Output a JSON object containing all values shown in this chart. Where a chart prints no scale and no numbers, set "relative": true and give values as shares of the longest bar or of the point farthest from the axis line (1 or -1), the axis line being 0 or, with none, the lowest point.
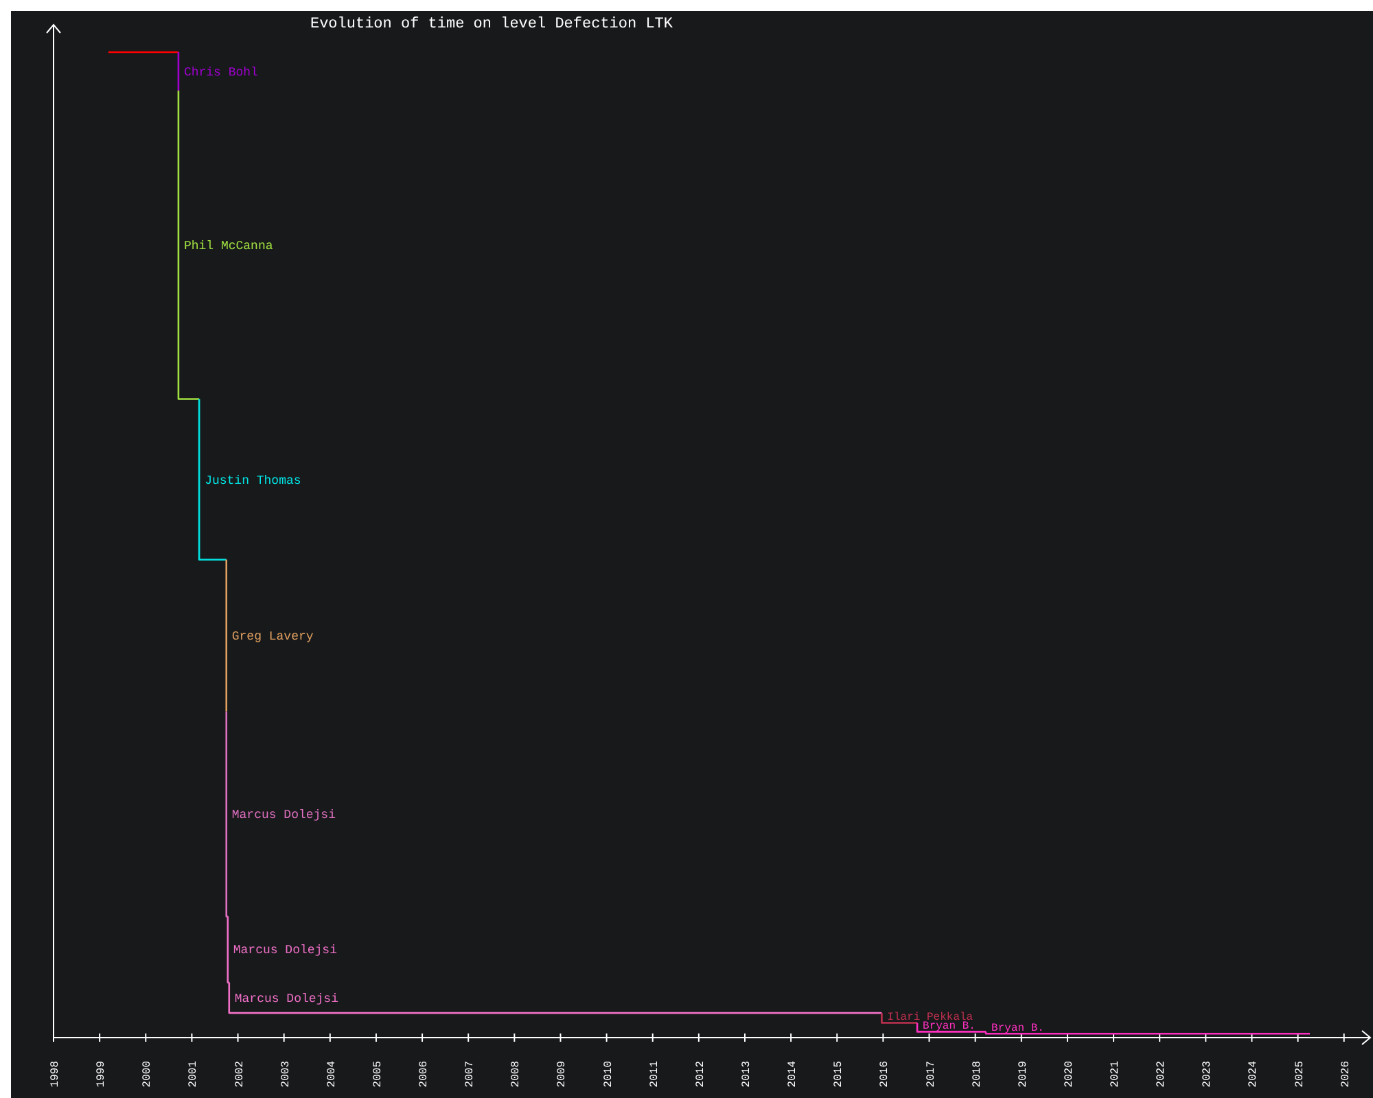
{
  "chart_data": {
    "type": "step",
    "title": "Evolution of time on level Defection LTK",
    "relative": true,
    "tick_labels": "x",
    "xlim": [
      1998,
      2026.57
    ],
    "xticks": [
      1998,
      1999,
      2000,
      2001,
      2002,
      2003,
      2004,
      2005,
      2006,
      2007,
      2008,
      2009,
      2010,
      2011,
      2012,
      2013,
      2014,
      2015,
      2016,
      2017,
      2018,
      2019,
      2020,
      2021,
      2022,
      2023,
      2024,
      2025,
      2026
    ],
    "series": [
      {
        "color": "#ff0000",
        "x": [
          1999.19,
          2000.71
        ],
        "values": [
          1,
          1
        ]
      },
      {
        "name": "Chris Bohl",
        "color": "#a000d0",
        "x": [
          2000.71,
          2000.71
        ],
        "values": [
          1,
          0.961
        ]
      },
      {
        "name": "Phil McCanna",
        "color": "#a0e040",
        "x": [
          2000.71,
          2000.71,
          2001.16
        ],
        "values": [
          0.961,
          0.648,
          0.648
        ]
      },
      {
        "name": "Justin Thomas",
        "color": "#00e5e5",
        "x": [
          2001.16,
          2001.16,
          2001.75
        ],
        "values": [
          0.648,
          0.485,
          0.485
        ]
      },
      {
        "name": "Greg Lavery",
        "color": "#e0a060",
        "x": [
          2001.75,
          2001.75
        ],
        "values": [
          0.485,
          0.331
        ]
      },
      {
        "name": "Marcus Dolejsi",
        "color": "#e070c0",
        "x": [
          2001.75,
          2001.75,
          2001.78
        ],
        "values": [
          0.331,
          0.123,
          0.123
        ]
      },
      {
        "name": "Marcus Dolejsi",
        "color": "#f070c8",
        "x": [
          2001.78,
          2001.78,
          2001.81
        ],
        "values": [
          0.123,
          0.056,
          0.056
        ]
      },
      {
        "name": "Marcus Dolejsi",
        "color": "#f070c8",
        "x": [
          2001.81,
          2001.81,
          2015.97
        ],
        "values": [
          0.056,
          0.025,
          0.025
        ]
      },
      {
        "name": "Ilari Pekkala",
        "color": "#c03050",
        "x": [
          2015.97,
          2015.97,
          2016.74
        ],
        "values": [
          0.025,
          0.015,
          0.015
        ]
      },
      {
        "name": "Bryan B.",
        "color": "#ff30c0",
        "x": [
          2016.74,
          2016.74,
          2018.23
        ],
        "values": [
          0.015,
          0.006,
          0.006
        ]
      },
      {
        "name": "Bryan B.",
        "color": "#ff30c0",
        "x": [
          2018.23,
          2018.23,
          2025.26
        ],
        "values": [
          0.006,
          0.004,
          0.004
        ]
      }
    ]
  }
}
